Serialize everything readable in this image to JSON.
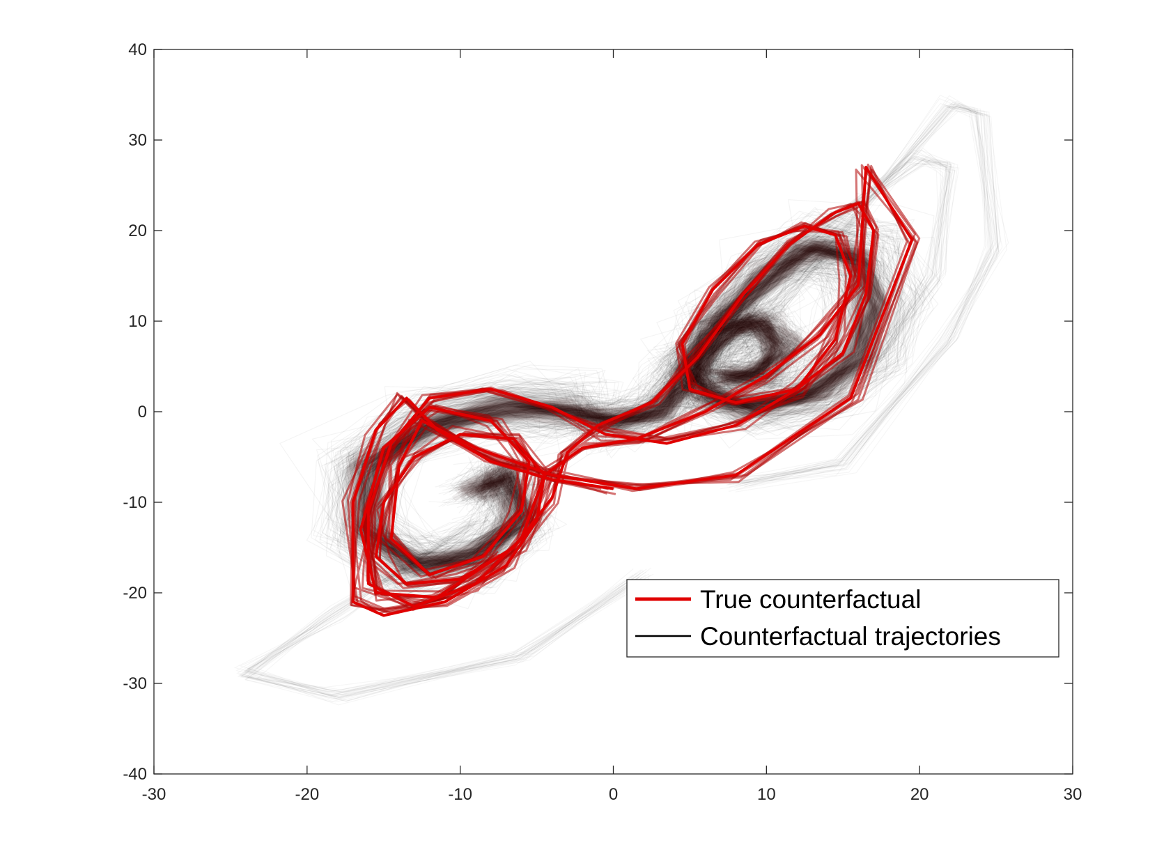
{
  "chart_data": {
    "type": "line",
    "title": "",
    "xlabel": "",
    "ylabel": "",
    "xlim": [
      -30,
      30
    ],
    "ylim": [
      -40,
      40
    ],
    "xticks": [
      -30,
      -20,
      -10,
      0,
      10,
      20,
      30
    ],
    "yticks": [
      -40,
      -30,
      -20,
      -10,
      0,
      10,
      20,
      30,
      40
    ],
    "grid": false,
    "legend_position": "bottom-right",
    "series": [
      {
        "name": "True counterfactual",
        "color": "#e00000",
        "style": "thick",
        "points": [
          [
            0.0,
            -8.5
          ],
          [
            -4.0,
            -7.5
          ],
          [
            -8.0,
            -5.5
          ],
          [
            -11.5,
            -2.0
          ],
          [
            -13.5,
            1.5
          ],
          [
            -15.5,
            -2.0
          ],
          [
            -17.0,
            -10.0
          ],
          [
            -17.0,
            -21.0
          ],
          [
            -15.0,
            -22.5
          ],
          [
            -11.0,
            -21.0
          ],
          [
            -7.0,
            -17.0
          ],
          [
            -5.0,
            -12.0
          ],
          [
            -4.5,
            -7.0
          ],
          [
            -6.5,
            -3.0
          ],
          [
            -10.0,
            -2.5
          ],
          [
            -13.0,
            -5.0
          ],
          [
            -15.0,
            -10.0
          ],
          [
            -15.5,
            -16.0
          ],
          [
            -13.5,
            -19.0
          ],
          [
            -10.0,
            -18.5
          ],
          [
            -6.5,
            -15.0
          ],
          [
            -4.0,
            -9.5
          ],
          [
            -3.0,
            -4.5
          ],
          [
            -1.0,
            -1.5
          ],
          [
            2.5,
            1.0
          ],
          [
            5.5,
            6.0
          ],
          [
            8.5,
            13.0
          ],
          [
            11.5,
            18.5
          ],
          [
            14.5,
            22.0
          ],
          [
            16.0,
            23.0
          ],
          [
            17.0,
            20.0
          ],
          [
            16.5,
            13.0
          ],
          [
            15.0,
            6.5
          ],
          [
            12.0,
            2.5
          ],
          [
            8.0,
            1.0
          ],
          [
            5.0,
            2.5
          ],
          [
            4.5,
            7.5
          ],
          [
            6.5,
            13.5
          ],
          [
            9.5,
            18.5
          ],
          [
            12.5,
            20.5
          ],
          [
            14.5,
            19.5
          ],
          [
            15.5,
            15.0
          ],
          [
            14.5,
            8.0
          ],
          [
            12.0,
            2.5
          ],
          [
            8.0,
            -1.5
          ],
          [
            3.5,
            -3.5
          ],
          [
            -0.5,
            -2.5
          ],
          [
            -4.0,
            0.5
          ],
          [
            -8.0,
            2.5
          ],
          [
            -12.0,
            1.5
          ],
          [
            -14.5,
            -3.5
          ],
          [
            -16.0,
            -11.0
          ],
          [
            -16.0,
            -19.0
          ],
          [
            -13.0,
            -21.5
          ],
          [
            -9.0,
            -19.0
          ],
          [
            -6.0,
            -14.0
          ],
          [
            -4.5,
            -7.0
          ],
          [
            -2.0,
            -4.0
          ],
          [
            1.5,
            -3.0
          ],
          [
            6.0,
            0.0
          ],
          [
            10.0,
            4.0
          ],
          [
            13.5,
            8.5
          ],
          [
            16.0,
            14.0
          ],
          [
            16.5,
            27.0
          ],
          [
            19.5,
            19.0
          ],
          [
            15.5,
            1.5
          ],
          [
            8.0,
            -7.0
          ],
          [
            1.5,
            -8.5
          ],
          [
            -4.0,
            -7.0
          ],
          [
            -9.0,
            -4.0
          ],
          [
            -12.5,
            -1.0
          ],
          [
            -14.0,
            -6.0
          ],
          [
            -14.5,
            -14.0
          ],
          [
            -12.0,
            -18.0
          ],
          [
            -8.5,
            -16.0
          ],
          [
            -6.0,
            -11.0
          ],
          [
            -5.5,
            -5.5
          ],
          [
            -8.0,
            -1.0
          ],
          [
            -12.0,
            0.5
          ],
          [
            -15.0,
            -4.0
          ],
          [
            -16.5,
            -13.0
          ],
          [
            -15.5,
            -20.0
          ],
          [
            -11.5,
            -20.5
          ],
          [
            -7.5,
            -16.0
          ]
        ]
      },
      {
        "name": "Counterfactual trajectories",
        "color": "#000000",
        "style": "thin translucent ensemble",
        "points": [
          [
            -9.0,
            -9.0
          ],
          [
            -7.0,
            -7.0
          ],
          [
            -6.0,
            -12.0
          ],
          [
            -9.0,
            -16.0
          ],
          [
            -13.0,
            -17.0
          ],
          [
            -16.0,
            -13.0
          ],
          [
            -16.0,
            -6.0
          ],
          [
            -12.0,
            -1.5
          ],
          [
            -7.0,
            0.5
          ],
          [
            -3.0,
            0.0
          ],
          [
            0.0,
            -1.0
          ],
          [
            3.0,
            0.0
          ],
          [
            5.0,
            4.0
          ],
          [
            7.0,
            10.0
          ],
          [
            10.0,
            15.0
          ],
          [
            13.0,
            18.0
          ],
          [
            16.0,
            17.0
          ],
          [
            17.0,
            12.0
          ],
          [
            16.0,
            6.0
          ],
          [
            13.0,
            2.0
          ],
          [
            9.0,
            0.5
          ],
          [
            6.0,
            2.0
          ],
          [
            5.0,
            5.0
          ],
          [
            7.0,
            9.0
          ],
          [
            9.5,
            10.0
          ],
          [
            11.0,
            7.0
          ],
          [
            9.5,
            4.0
          ],
          [
            7.0,
            4.0
          ]
        ]
      }
    ]
  }
}
